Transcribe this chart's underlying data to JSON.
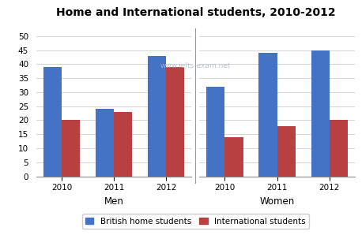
{
  "title": "Home and International students, 2010-2012",
  "watermark": "www.ielts-exam.net",
  "groups": [
    "Men",
    "Women"
  ],
  "years": [
    "2010",
    "2011",
    "2012"
  ],
  "british_color": "#4472C4",
  "international_color": "#B94040",
  "data": {
    "Men": {
      "british": [
        39,
        24,
        43
      ],
      "international": [
        20,
        23,
        39
      ]
    },
    "Women": {
      "british": [
        32,
        44,
        45
      ],
      "international": [
        14,
        18,
        20
      ]
    }
  },
  "ylim": [
    0,
    52
  ],
  "yticks": [
    0,
    5,
    10,
    15,
    20,
    25,
    30,
    35,
    40,
    45,
    50
  ],
  "legend_labels": [
    "British home students",
    "International students"
  ],
  "background_color": "#ffffff",
  "divider_color": "#999999",
  "bar_width": 0.35
}
